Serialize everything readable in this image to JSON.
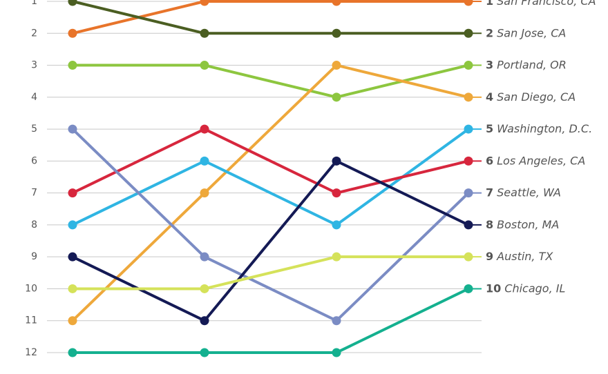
{
  "chart_data": {
    "type": "bump",
    "categories": [
      null,
      null,
      null,
      null
    ],
    "ylim": [
      1,
      12
    ],
    "inverted": true,
    "yticks": [
      1,
      2,
      3,
      4,
      5,
      6,
      7,
      8,
      9,
      10,
      11,
      12
    ],
    "grid": true,
    "series": [
      {
        "name": "San Francisco, CA",
        "color": "#e8742a",
        "values": [
          2,
          1,
          1,
          1
        ]
      },
      {
        "name": "San Jose, CA",
        "color": "#4b5e22",
        "values": [
          1,
          2,
          2,
          2
        ]
      },
      {
        "name": "Portland, OR",
        "color": "#8dc63f",
        "values": [
          3,
          3,
          4,
          3
        ]
      },
      {
        "name": "San Diego, CA",
        "color": "#eea83b",
        "values": [
          11,
          7,
          3,
          4
        ]
      },
      {
        "name": "Washington, D.C.",
        "color": "#2fb5e3",
        "values": [
          8,
          6,
          8,
          5
        ]
      },
      {
        "name": "Los Angeles, CA",
        "color": "#d7263d",
        "values": [
          7,
          5,
          7,
          6
        ]
      },
      {
        "name": "Seattle, WA",
        "color": "#7b8cc4",
        "values": [
          5,
          9,
          11,
          7
        ]
      },
      {
        "name": "Boston, MA",
        "color": "#141a55",
        "values": [
          9,
          11,
          6,
          8
        ]
      },
      {
        "name": "Austin, TX",
        "color": "#d5e25a",
        "values": [
          10,
          10,
          9,
          9
        ]
      },
      {
        "name": "Chicago, IL",
        "color": "#14b08f",
        "values": [
          12,
          12,
          12,
          10
        ]
      }
    ]
  }
}
